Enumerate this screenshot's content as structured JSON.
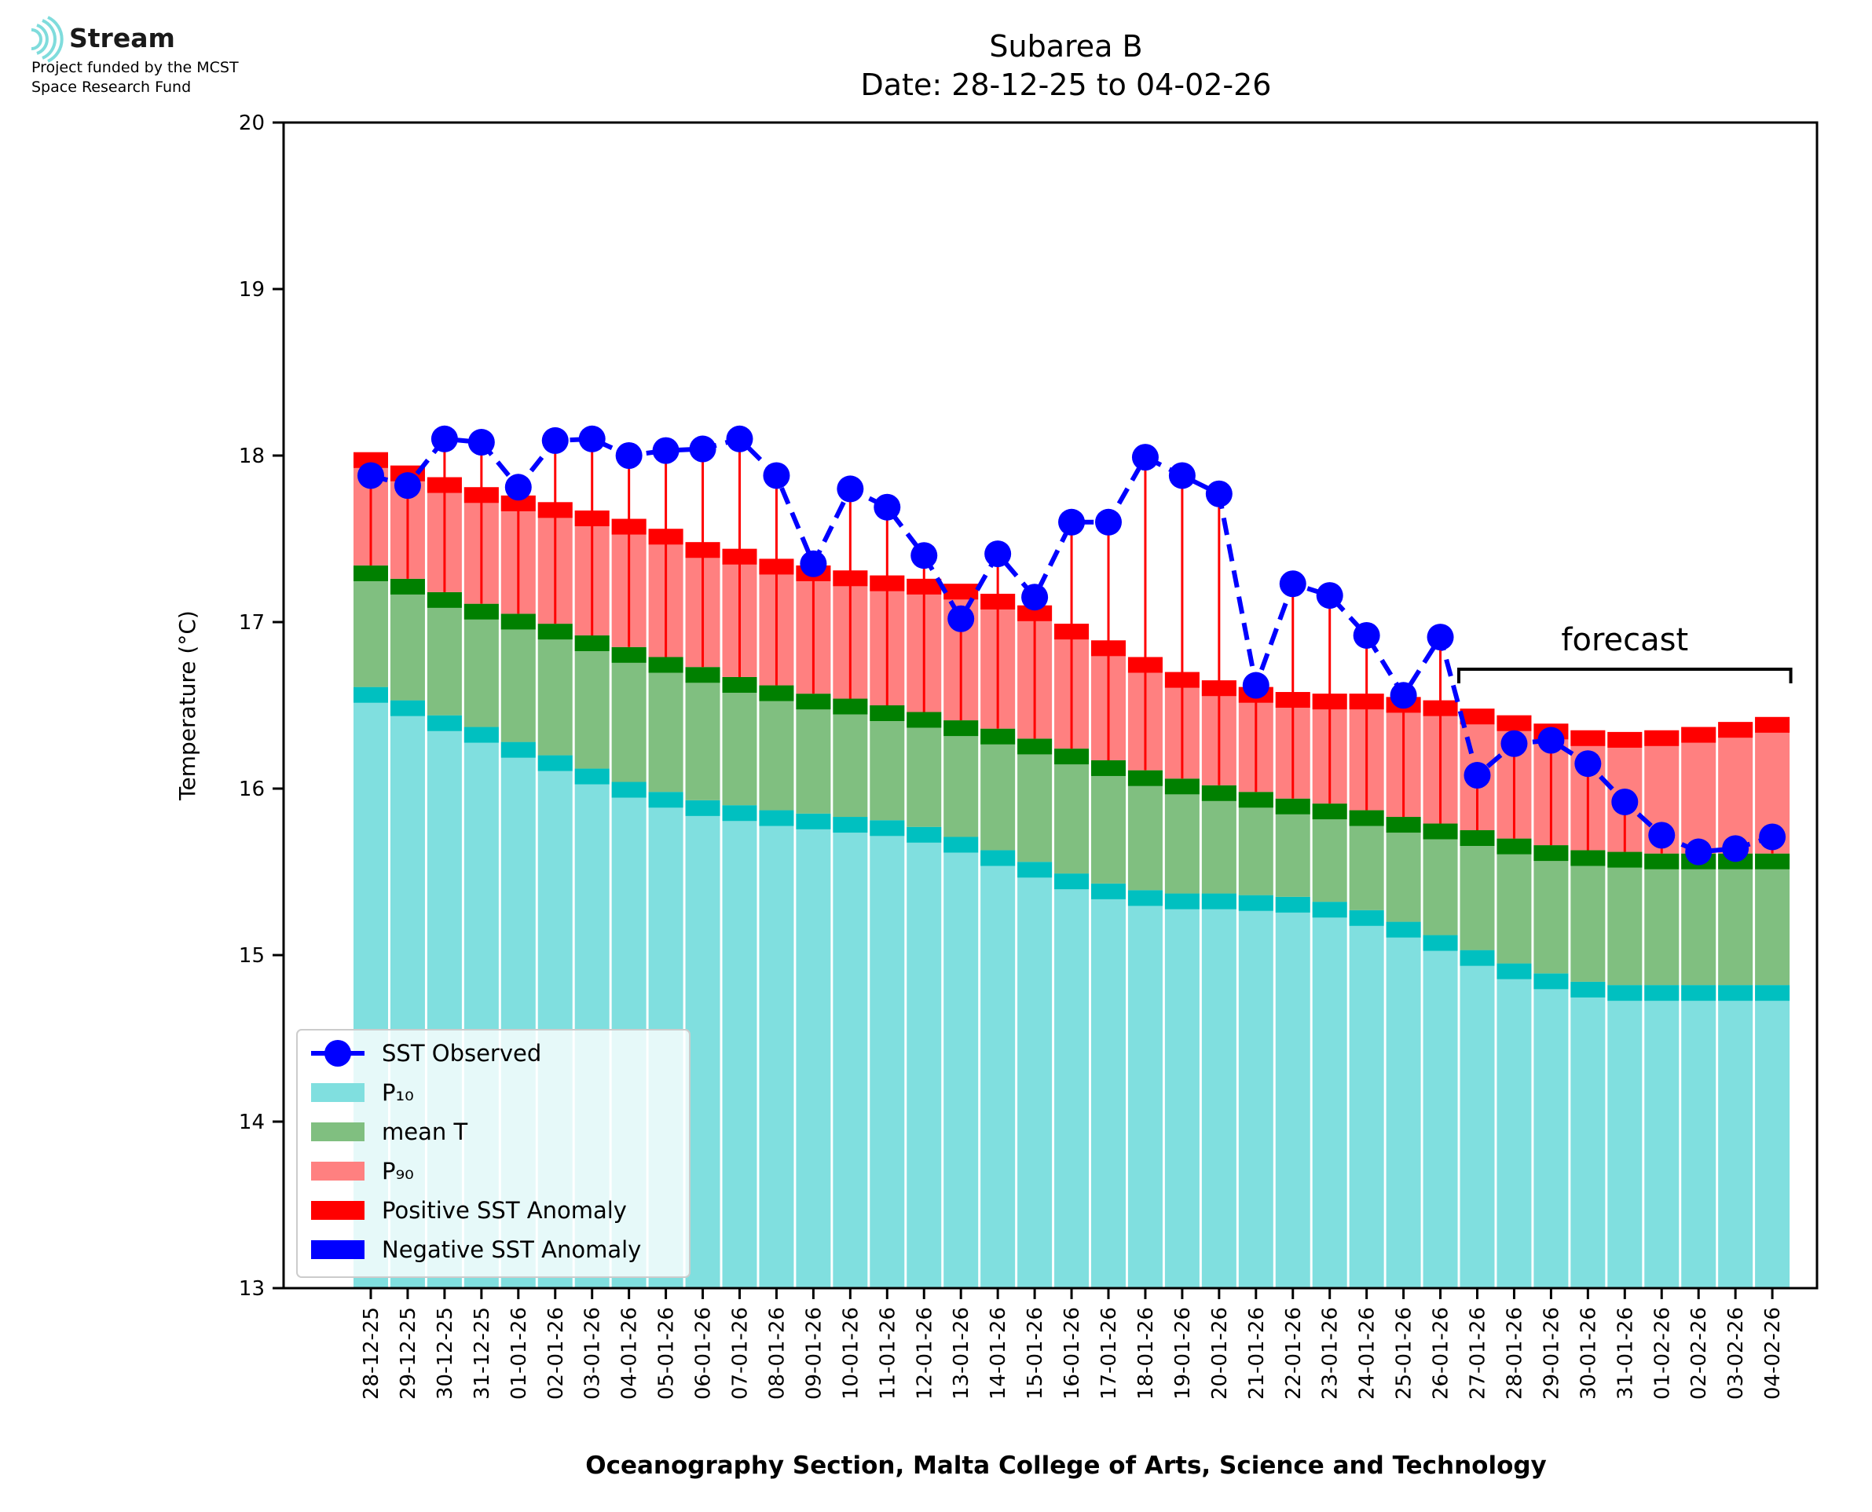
{
  "logo": {
    "brand": "Stream",
    "funding_line1": "Project funded by the MCST",
    "funding_line2": "Space Research Fund"
  },
  "colors": {
    "p10": "#80dfdf",
    "p10_cap": "#00c0c0",
    "mean": "#80bf80",
    "mean_cap": "#008000",
    "p90": "#ff8080",
    "p90_cap": "#ff0000",
    "observed": "#0000ff",
    "positive_anomaly": "#ff0000",
    "negative_anomaly": "#0000ff"
  },
  "chart_data": {
    "type": "bar",
    "title": "Subarea B",
    "subtitle": "Date: 28-12-25 to 04-02-26",
    "xlabel": "Oceanography Section, Malta College of Arts, Science and Technology",
    "ylabel": "Temperature (°C)",
    "ylim": [
      13,
      20
    ],
    "yticks": [
      13,
      14,
      15,
      16,
      17,
      18,
      19,
      20
    ],
    "grid": false,
    "legend_position": "lower-left",
    "annotation": "forecast",
    "forecast_start": "27-01-26",
    "forecast_end": "04-02-26",
    "categories": [
      "28-12-25",
      "29-12-25",
      "30-12-25",
      "31-12-25",
      "01-01-26",
      "02-01-26",
      "03-01-26",
      "04-01-26",
      "05-01-26",
      "06-01-26",
      "07-01-26",
      "08-01-26",
      "09-01-26",
      "10-01-26",
      "11-01-26",
      "12-01-26",
      "13-01-26",
      "14-01-26",
      "15-01-26",
      "16-01-26",
      "17-01-26",
      "18-01-26",
      "19-01-26",
      "20-01-26",
      "21-01-26",
      "22-01-26",
      "23-01-26",
      "24-01-26",
      "25-01-26",
      "26-01-26",
      "27-01-26",
      "28-01-26",
      "29-01-26",
      "30-01-26",
      "31-01-26",
      "01-02-26",
      "02-02-26",
      "03-02-26",
      "04-02-26"
    ],
    "series": [
      {
        "name": "P10",
        "values": [
          16.61,
          16.53,
          16.44,
          16.37,
          16.28,
          16.2,
          16.12,
          16.04,
          15.98,
          15.93,
          15.9,
          15.87,
          15.85,
          15.83,
          15.81,
          15.77,
          15.71,
          15.63,
          15.56,
          15.49,
          15.43,
          15.39,
          15.37,
          15.37,
          15.36,
          15.35,
          15.32,
          15.27,
          15.2,
          15.12,
          15.03,
          14.95,
          14.89,
          14.84,
          14.82,
          14.82,
          14.82,
          14.82,
          14.82
        ]
      },
      {
        "name": "mean T",
        "values": [
          17.34,
          17.26,
          17.18,
          17.11,
          17.05,
          16.99,
          16.92,
          16.85,
          16.79,
          16.73,
          16.67,
          16.62,
          16.57,
          16.54,
          16.5,
          16.46,
          16.41,
          16.36,
          16.3,
          16.24,
          16.17,
          16.11,
          16.06,
          16.02,
          15.98,
          15.94,
          15.91,
          15.87,
          15.83,
          15.79,
          15.75,
          15.7,
          15.66,
          15.63,
          15.62,
          15.61,
          15.61,
          15.61,
          15.61
        ]
      },
      {
        "name": "P90",
        "values": [
          18.02,
          17.94,
          17.87,
          17.81,
          17.76,
          17.72,
          17.67,
          17.62,
          17.56,
          17.48,
          17.44,
          17.38,
          17.34,
          17.31,
          17.28,
          17.26,
          17.23,
          17.17,
          17.1,
          16.99,
          16.89,
          16.79,
          16.7,
          16.65,
          16.61,
          16.58,
          16.57,
          16.57,
          16.55,
          16.53,
          16.48,
          16.44,
          16.39,
          16.35,
          16.34,
          16.35,
          16.37,
          16.4,
          16.43
        ]
      },
      {
        "name": "SST Observed",
        "values": [
          17.88,
          17.82,
          18.1,
          18.08,
          17.81,
          18.09,
          18.1,
          18.0,
          18.03,
          18.04,
          18.1,
          17.88,
          17.35,
          17.8,
          17.69,
          17.4,
          17.02,
          17.41,
          17.15,
          17.6,
          17.6,
          17.99,
          17.88,
          17.77,
          16.62,
          17.23,
          17.16,
          16.92,
          16.56,
          16.91,
          16.08,
          16.27,
          16.29,
          16.15,
          15.92,
          15.72,
          15.62,
          15.64,
          15.71
        ]
      }
    ],
    "legend": [
      {
        "key": "observed",
        "label": "SST Observed",
        "style": "line-marker"
      },
      {
        "key": "p10",
        "label": "P₁₀",
        "style": "patch"
      },
      {
        "key": "mean",
        "label": "mean T",
        "style": "patch"
      },
      {
        "key": "p90",
        "label": "P₉₀",
        "style": "patch"
      },
      {
        "key": "positive_anomaly",
        "label": "Positive SST Anomaly",
        "style": "patch"
      },
      {
        "key": "negative_anomaly",
        "label": "Negative SST Anomaly",
        "style": "patch"
      }
    ]
  }
}
